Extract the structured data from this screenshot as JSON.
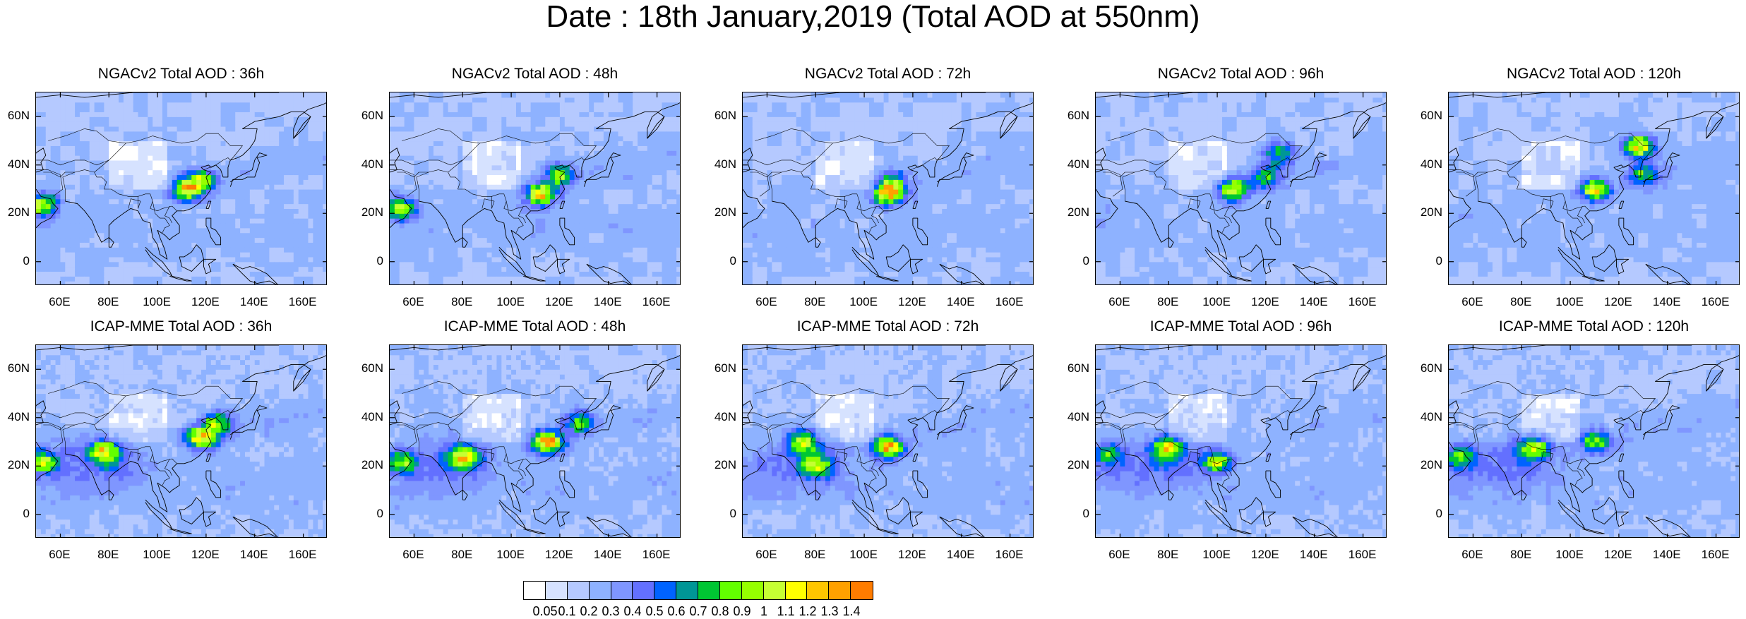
{
  "title": "Date : 18th January,2019 (Total AOD at 550nm)",
  "panels": [
    {
      "title": "NGACv2 Total AOD : 36h",
      "model": "NGACv2",
      "lead": "36h",
      "hotspots": [
        [
          112,
          30,
          0.95
        ],
        [
          52,
          24,
          0.85
        ],
        [
          118,
          34,
          0.7
        ]
      ]
    },
    {
      "title": "NGACv2 Total AOD : 48h",
      "model": "NGACv2",
      "lead": "48h",
      "hotspots": [
        [
          112,
          28,
          1.05
        ],
        [
          55,
          22,
          0.75
        ],
        [
          120,
          36,
          0.65
        ]
      ]
    },
    {
      "title": "NGACv2 Total AOD : 72h",
      "model": "NGACv2",
      "lead": "72h",
      "hotspots": [
        [
          110,
          28,
          0.95
        ],
        [
          112,
          33,
          0.6
        ]
      ]
    },
    {
      "title": "NGACv2 Total AOD : 96h",
      "model": "NGACv2",
      "lead": "96h",
      "hotspots": [
        [
          107,
          30,
          1.0
        ],
        [
          125,
          45,
          0.6
        ],
        [
          120,
          35,
          0.5
        ]
      ]
    },
    {
      "title": "NGACv2 Total AOD : 120h",
      "model": "NGACv2",
      "lead": "120h",
      "hotspots": [
        [
          128,
          48,
          1.0
        ],
        [
          110,
          30,
          0.9
        ],
        [
          130,
          36,
          0.55
        ]
      ]
    },
    {
      "title": "ICAP-MME Total AOD : 36h",
      "model": "ICAP-MME",
      "lead": "36h",
      "hotspots": [
        [
          118,
          32,
          1.1
        ],
        [
          78,
          26,
          0.8
        ],
        [
          52,
          22,
          0.7
        ],
        [
          125,
          38,
          0.6
        ]
      ]
    },
    {
      "title": "ICAP-MME Total AOD : 48h",
      "model": "ICAP-MME",
      "lead": "48h",
      "hotspots": [
        [
          115,
          30,
          1.15
        ],
        [
          80,
          24,
          0.8
        ],
        [
          55,
          22,
          0.65
        ],
        [
          128,
          38,
          0.6
        ]
      ]
    },
    {
      "title": "ICAP-MME Total AOD : 72h",
      "model": "ICAP-MME",
      "lead": "72h",
      "hotspots": [
        [
          110,
          28,
          1.1
        ],
        [
          75,
          30,
          0.7
        ],
        [
          80,
          20,
          0.65
        ]
      ]
    },
    {
      "title": "ICAP-MME Total AOD : 96h",
      "model": "ICAP-MME",
      "lead": "96h",
      "hotspots": [
        [
          80,
          28,
          0.85
        ],
        [
          100,
          22,
          0.75
        ],
        [
          55,
          25,
          0.5
        ]
      ]
    },
    {
      "title": "ICAP-MME Total AOD : 120h",
      "model": "ICAP-MME",
      "lead": "120h",
      "hotspots": [
        [
          85,
          28,
          0.75
        ],
        [
          110,
          30,
          0.7
        ],
        [
          55,
          24,
          0.55
        ]
      ]
    }
  ],
  "axes": {
    "lon_range": [
      50,
      170
    ],
    "lat_range": [
      -10,
      70
    ],
    "x_ticks": [
      "60E",
      "80E",
      "100E",
      "120E",
      "140E",
      "160E"
    ],
    "x_tick_values": [
      60,
      80,
      100,
      120,
      140,
      160
    ],
    "y_ticks": [
      "60N",
      "40N",
      "20N",
      "0"
    ],
    "y_tick_values": [
      60,
      40,
      20,
      0
    ]
  },
  "colorbar": {
    "labels": [
      "0.05",
      "0.1",
      "0.2",
      "0.3",
      "0.4",
      "0.5",
      "0.6",
      "0.7",
      "0.8",
      "0.9",
      "1",
      "1.1",
      "1.2",
      "1.3",
      "1.4"
    ],
    "colors": [
      "#ffffff",
      "#d6e2ff",
      "#b5c9ff",
      "#8eb2ff",
      "#7f96ff",
      "#6370ff",
      "#0063ff",
      "#009696",
      "#00c633",
      "#63ff00",
      "#96ff00",
      "#c6ff33",
      "#ffff00",
      "#ffc600",
      "#ffa000",
      "#ff7c00",
      "#ff1900"
    ]
  }
}
